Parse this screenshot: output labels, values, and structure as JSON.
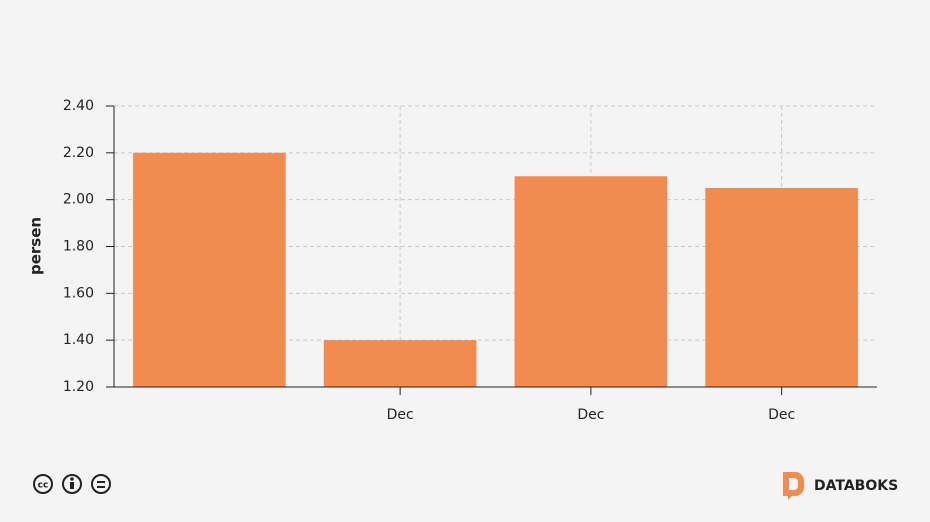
{
  "chart_data": {
    "type": "bar",
    "y_label": "persen",
    "categories": [
      null,
      "Dec",
      "Dec",
      "Dec"
    ],
    "values": [
      2.2,
      1.4,
      2.1,
      2.05
    ],
    "color": "#f28b50",
    "ylim": [
      1.2,
      2.4
    ],
    "yticks": [
      {
        "value": 1.2,
        "label": "1.20"
      },
      {
        "value": 1.4,
        "label": "1.40"
      },
      {
        "value": 1.6,
        "label": "1.60"
      },
      {
        "value": 1.8,
        "label": "1.80"
      },
      {
        "value": 2.0,
        "label": "2.00"
      },
      {
        "value": 2.2,
        "label": "2.20"
      },
      {
        "value": 2.4,
        "label": "2.40"
      }
    ],
    "grid": true
  },
  "brand": "DATABOKS"
}
